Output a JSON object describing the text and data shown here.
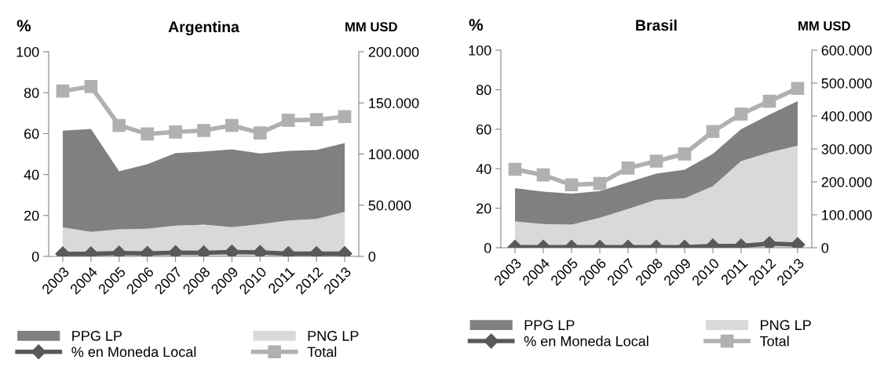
{
  "chart_data": [
    {
      "type": "area",
      "title": "Argentina",
      "ylabel": "%",
      "y2label": "MM USD",
      "stacked": true,
      "categories": [
        "2003",
        "2004",
        "2005",
        "2006",
        "2007",
        "2008",
        "2009",
        "2010",
        "2011",
        "2012",
        "2013"
      ],
      "ylim": [
        0,
        100
      ],
      "yticks": [
        0,
        20,
        40,
        60,
        80,
        100
      ],
      "y2lim": [
        0,
        200000
      ],
      "y2ticks": [
        {
          "value": 0,
          "label": "0"
        },
        {
          "value": 50000,
          "label": "50.000"
        },
        {
          "value": 100000,
          "label": "100.000"
        },
        {
          "value": 150000,
          "label": "150.000"
        },
        {
          "value": 200000,
          "label": "200.000"
        }
      ],
      "legend": "bottom",
      "grid": false,
      "series": [
        {
          "name": "PNG LP",
          "axis": "y2",
          "color": "#d9d9d9",
          "values": [
            28400,
            24000,
            26400,
            27000,
            30000,
            31000,
            28600,
            31400,
            35000,
            36600,
            43400
          ]
        },
        {
          "name": "PPG LP",
          "axis": "y2",
          "color": "#808080",
          "values": [
            94400,
            100600,
            56800,
            63000,
            71000,
            71400,
            76000,
            69200,
            68000,
            67400,
            67400
          ]
        },
        {
          "name": "% en Moneda Local",
          "type": "line",
          "axis": "y",
          "marker": "diamond",
          "color": "#595959",
          "values": [
            1.2,
            1.2,
            1.6,
            1.4,
            1.8,
            1.7,
            2.1,
            1.9,
            1.3,
            1.3,
            1.3
          ]
        },
        {
          "name": "Total",
          "type": "line",
          "axis": "y2",
          "marker": "square",
          "color": "#b0b0b0",
          "values": [
            161600,
            166000,
            128000,
            119600,
            121600,
            123000,
            128000,
            120600,
            133000,
            133600,
            136600
          ]
        }
      ]
    },
    {
      "type": "area",
      "title": "Brasil",
      "ylabel": "%",
      "y2label": "MM USD",
      "stacked": true,
      "categories": [
        "2003",
        "2004",
        "2005",
        "2006",
        "2007",
        "2008",
        "2009",
        "2010",
        "2011",
        "2012",
        "2013"
      ],
      "ylim": [
        0,
        100
      ],
      "yticks": [
        0,
        20,
        40,
        60,
        80,
        100
      ],
      "y2lim": [
        0,
        600000
      ],
      "y2ticks": [
        {
          "value": 0,
          "label": "0"
        },
        {
          "value": 100000,
          "label": "100.000"
        },
        {
          "value": 200000,
          "label": "200.000"
        },
        {
          "value": 300000,
          "label": "300.000"
        },
        {
          "value": 400000,
          "label": "400.000"
        },
        {
          "value": 500000,
          "label": "500.000"
        },
        {
          "value": 600000,
          "label": "600.000"
        }
      ],
      "legend": "bottom",
      "grid": false,
      "series": [
        {
          "name": "PNG LP",
          "axis": "y2",
          "color": "#d9d9d9",
          "values": [
            80000,
            72000,
            70000,
            91000,
            118000,
            146000,
            150000,
            187000,
            263000,
            289000,
            310000
          ]
        },
        {
          "name": "PPG LP",
          "axis": "y2",
          "color": "#808080",
          "values": [
            101000,
            98000,
            94000,
            81000,
            81000,
            79000,
            87000,
            98000,
            97000,
            115000,
            135000
          ]
        },
        {
          "name": "% en Moneda Local",
          "type": "line",
          "axis": "y",
          "marker": "diamond",
          "color": "#595959",
          "values": [
            0.3,
            0.3,
            0.3,
            0.3,
            0.3,
            0.3,
            0.3,
            0.9,
            0.9,
            2.1,
            1.6
          ]
        },
        {
          "name": "Total",
          "type": "line",
          "axis": "y2",
          "marker": "square",
          "color": "#b0b0b0",
          "values": [
            238000,
            221000,
            191000,
            195000,
            242000,
            263000,
            285000,
            353000,
            406000,
            445000,
            484000
          ]
        }
      ]
    }
  ]
}
